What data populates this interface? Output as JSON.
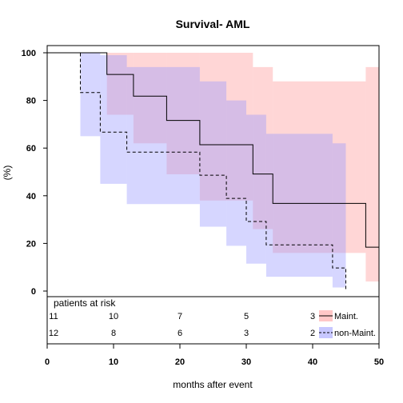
{
  "chart_data": {
    "type": "line",
    "subtype": "kaplan-meier-step",
    "title": "Survival- AML",
    "xlabel": "months after event",
    "ylabel": "(%)",
    "xlim": [
      0,
      50
    ],
    "ylim": [
      0,
      100
    ],
    "x_ticks": [
      0,
      10,
      20,
      30,
      40,
      50
    ],
    "y_ticks": [
      0,
      20,
      40,
      60,
      80,
      100
    ],
    "grid": false,
    "legend_position": "bottom-right",
    "series": [
      {
        "name": "Maint.",
        "line_style": "solid",
        "line_color": "#000000",
        "band_color": "#ff9999",
        "x": [
          0,
          9,
          13,
          18,
          23,
          31,
          34,
          48,
          50
        ],
        "y": [
          100,
          90.9,
          81.8,
          71.6,
          61.4,
          49.1,
          36.8,
          18.4,
          18.4
        ],
        "ci_lower": [
          100,
          74.0,
          62.0,
          49.0,
          38.0,
          26.0,
          16.0,
          4.0,
          4.0
        ],
        "ci_upper": [
          100,
          100,
          100,
          100,
          100,
          94.0,
          88.0,
          94.0,
          94.0
        ]
      },
      {
        "name": "non-Maint.",
        "line_style": "dashed",
        "line_color": "#000000",
        "band_color": "#9999ff",
        "x": [
          0,
          5,
          8,
          12,
          23,
          27,
          30,
          33,
          43,
          45
        ],
        "y": [
          100,
          83.3,
          66.7,
          58.3,
          48.6,
          38.9,
          29.2,
          19.4,
          9.7,
          0
        ],
        "ci_lower": [
          100,
          65.0,
          45.0,
          36.5,
          27.0,
          19.0,
          11.5,
          6.0,
          1.5,
          1.5
        ],
        "ci_upper": [
          100,
          100,
          99.0,
          94.0,
          88.0,
          80.0,
          74.0,
          66.0,
          62.0,
          62.0
        ]
      }
    ],
    "risk_table": {
      "title": "patients at risk",
      "times": [
        0,
        10,
        20,
        30,
        40
      ],
      "rows": [
        {
          "name": "Maint.",
          "counts": [
            "11",
            "10",
            "7",
            "5",
            "3"
          ]
        },
        {
          "name": "non-Maint.",
          "counts": [
            "12",
            "8",
            "6",
            "3",
            "2"
          ]
        }
      ]
    }
  }
}
